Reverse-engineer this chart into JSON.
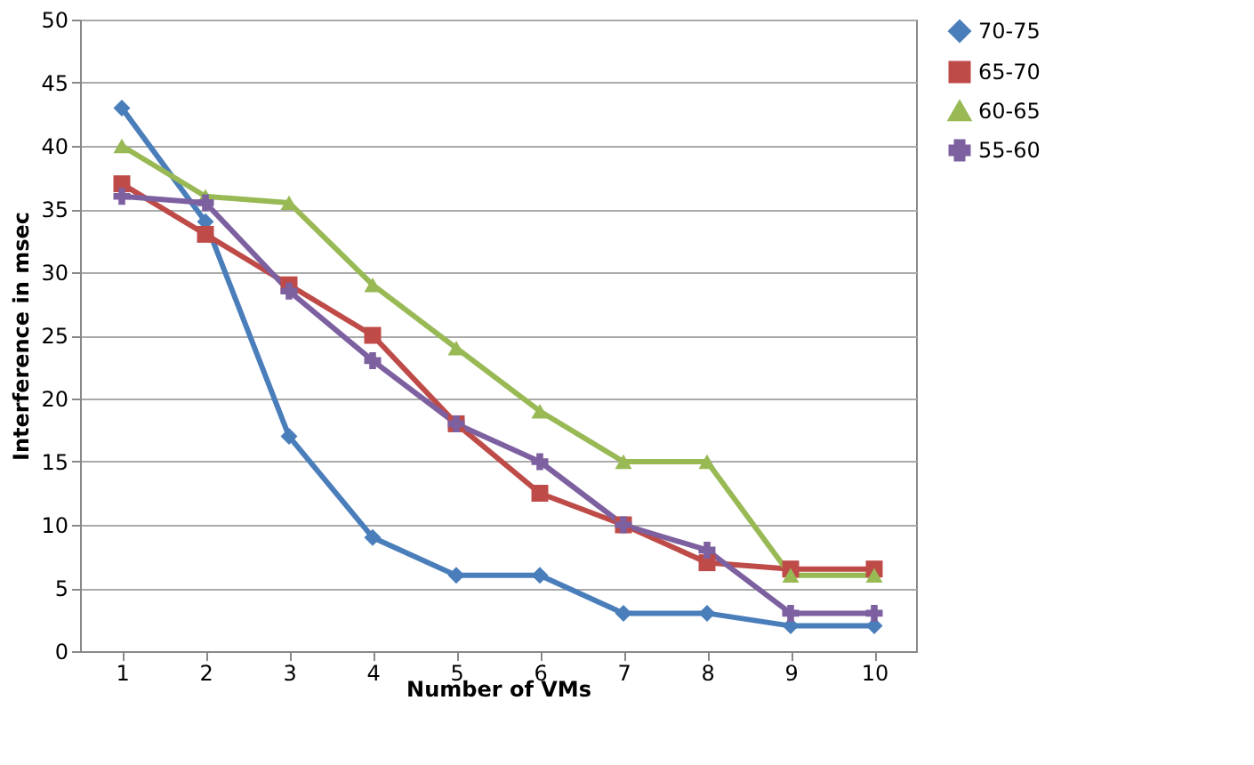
{
  "chart_data": {
    "type": "line",
    "xlabel": "Number of VMs",
    "ylabel": "Interference in msec",
    "categories": [
      "1",
      "2",
      "3",
      "4",
      "5",
      "6",
      "7",
      "8",
      "9",
      "10"
    ],
    "series": [
      {
        "name": "70-75",
        "color": "#4a7ebb",
        "marker": "diamond",
        "values": [
          43,
          34,
          17,
          9,
          6,
          6,
          3,
          3,
          2,
          2
        ]
      },
      {
        "name": "65-70",
        "color": "#be4b48",
        "marker": "square",
        "values": [
          37,
          33,
          29,
          25,
          18,
          12.5,
          10,
          7,
          6.5,
          6.5
        ]
      },
      {
        "name": "60-65",
        "color": "#98b954",
        "marker": "triangle",
        "values": [
          40,
          36,
          35.5,
          29,
          24,
          19,
          15,
          15,
          6,
          6
        ]
      },
      {
        "name": "55-60",
        "color": "#7d60a0",
        "marker": "cross",
        "values": [
          36,
          35.5,
          28.5,
          23,
          18,
          15,
          10,
          8,
          3,
          3
        ]
      }
    ],
    "ylim": [
      0,
      50
    ],
    "yticks": [
      0,
      5,
      10,
      15,
      20,
      25,
      30,
      35,
      40,
      45,
      50
    ],
    "grid": "y",
    "legend": "right"
  }
}
